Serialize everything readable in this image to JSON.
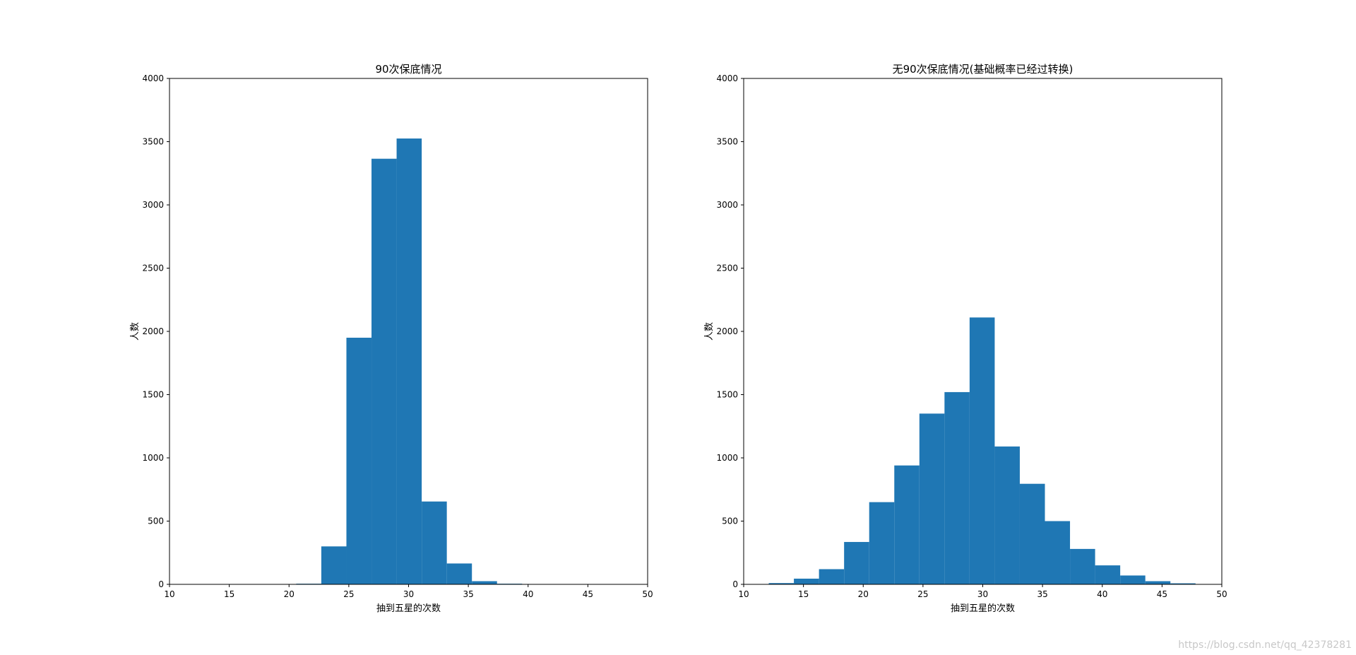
{
  "watermark": "https://blog.csdn.net/qq_42378281",
  "chart_data": [
    {
      "type": "bar",
      "title": "90次保底情况",
      "xlabel": "抽到五星的次数",
      "ylabel": "人数",
      "xlim": [
        10,
        50
      ],
      "ylim": [
        0,
        4000
      ],
      "xticks": [
        10,
        15,
        20,
        25,
        30,
        35,
        40,
        45,
        50
      ],
      "yticks": [
        0,
        500,
        1000,
        1500,
        2000,
        2500,
        3000,
        3500,
        4000
      ],
      "color": "#1f77b4",
      "bin_edges": [
        20.6,
        22.7,
        24.8,
        26.9,
        29.0,
        31.1,
        33.2,
        35.3,
        37.4,
        39.5
      ],
      "values": [
        5,
        300,
        1950,
        3365,
        3525,
        655,
        165,
        25,
        5
      ]
    },
    {
      "type": "bar",
      "title": "无90次保底情况(基础概率已经过转换)",
      "xlabel": "抽到五星的次数",
      "ylabel": "人数",
      "xlim": [
        10,
        50
      ],
      "ylim": [
        0,
        4000
      ],
      "xticks": [
        10,
        15,
        20,
        25,
        30,
        35,
        40,
        45,
        50
      ],
      "yticks": [
        0,
        500,
        1000,
        1500,
        2000,
        2500,
        3000,
        3500,
        4000
      ],
      "color": "#1f77b4",
      "bin_edges": [
        12.1,
        14.2,
        16.3,
        18.4,
        20.5,
        22.6,
        24.7,
        26.8,
        28.9,
        31.0,
        33.1,
        35.2,
        37.3,
        39.4,
        41.5,
        43.6,
        45.7,
        47.8
      ],
      "values": [
        10,
        45,
        120,
        335,
        650,
        940,
        1350,
        1520,
        2110,
        1090,
        795,
        500,
        280,
        150,
        70,
        25,
        8
      ]
    }
  ]
}
